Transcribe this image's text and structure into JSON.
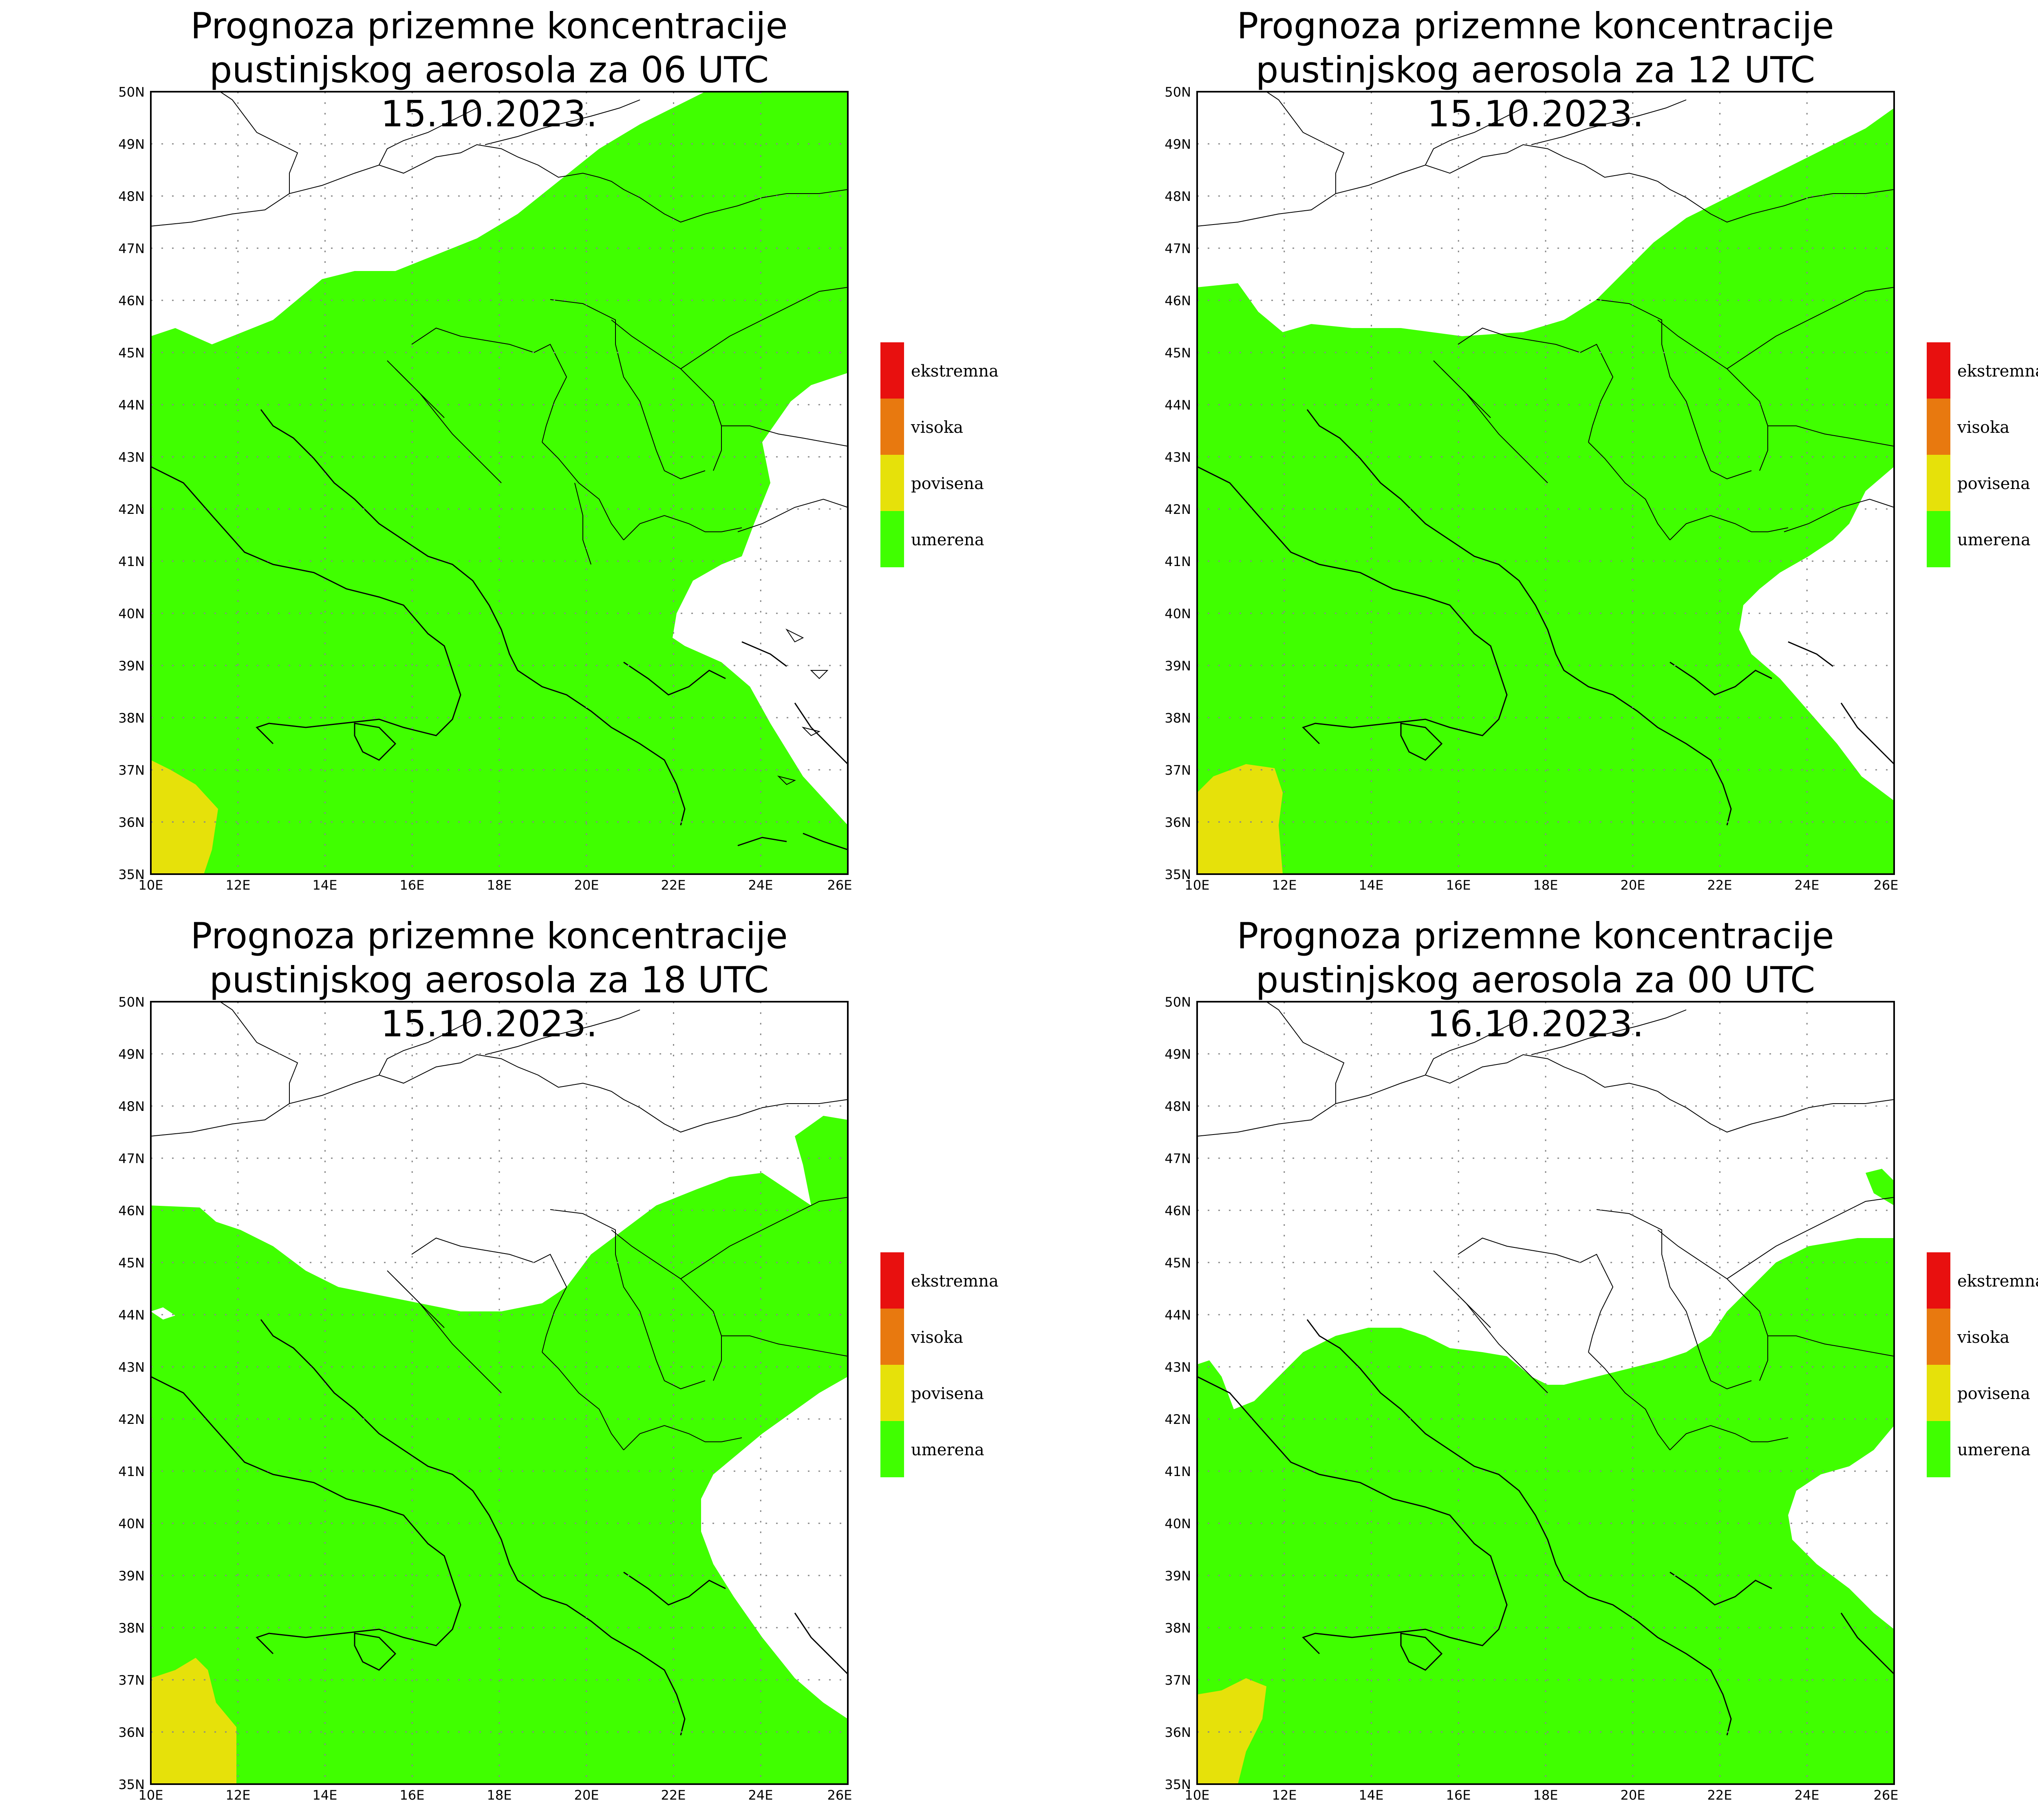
{
  "panels": [
    {
      "title_line1": "Prognoza prizemne koncentracije",
      "title_line2": "pustinjskog aerosola za 06 UTC 15.10.2023."
    },
    {
      "title_line1": "Prognoza prizemne koncentracije",
      "title_line2": "pustinjskog aerosola za 12 UTC 15.10.2023."
    },
    {
      "title_line1": "Prognoza prizemne koncentracije",
      "title_line2": "pustinjskog aerosola za 18 UTC 15.10.2023."
    },
    {
      "title_line1": "Prognoza prizemne koncentracije",
      "title_line2": "pustinjskog aerosola za 00 UTC 16.10.2023."
    }
  ],
  "lat_labels": [
    "50N",
    "49N",
    "48N",
    "47N",
    "46N",
    "45N",
    "44N",
    "43N",
    "42N",
    "41N",
    "40N",
    "39N",
    "38N",
    "37N",
    "36N",
    "35N"
  ],
  "lon_labels": [
    "10E",
    "12E",
    "14E",
    "16E",
    "18E",
    "20E",
    "22E",
    "24E",
    "26E"
  ],
  "legend": [
    {
      "label": "ekstremna",
      "color": "#e8100f"
    },
    {
      "label": "visoka",
      "color": "#e8790f"
    },
    {
      "label": "povisena",
      "color": "#e6e10a"
    },
    {
      "label": "umerena",
      "color": "#40ff00"
    }
  ],
  "colors": {
    "umerena_fill": "#40ff00",
    "povisena_fill": "#e6e10a",
    "background": "#ffffff"
  }
}
